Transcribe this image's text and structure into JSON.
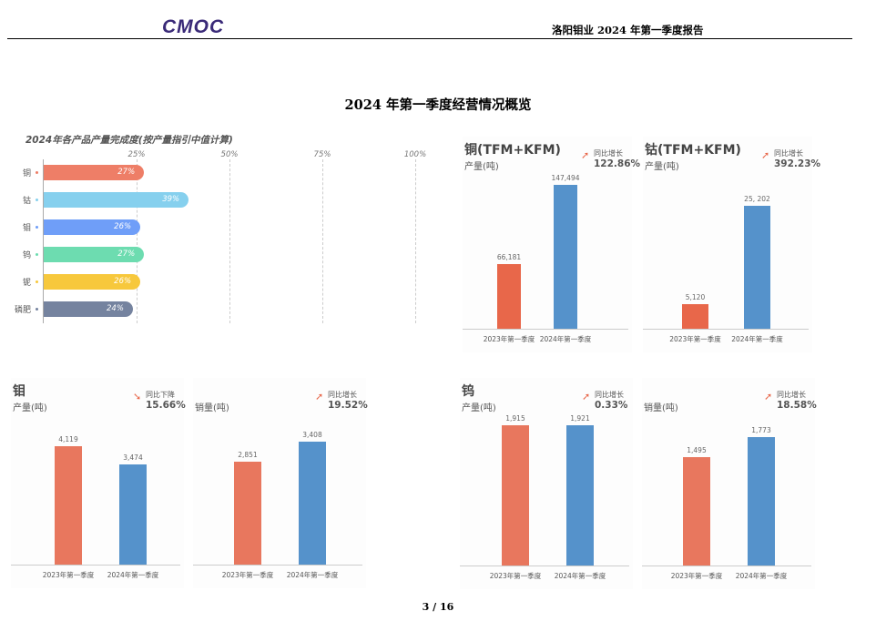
{
  "header": {
    "logo_text": "CMOC",
    "doc_title": "洛阳钼业 2024 年第一季度报告"
  },
  "page_title": "2024 年第一季度经营情况概览",
  "footer": {
    "page": "3 / 16"
  },
  "colors": {
    "y2023": "#e8775e",
    "y2024": "#5592cb",
    "cu2023": "#e8674a"
  },
  "chart_data": [
    {
      "type": "bar",
      "orientation": "horizontal",
      "title": "2024年各产品产量完成度(按产量指引中值计算)",
      "xlim": [
        0,
        100
      ],
      "ticks": [
        "25%",
        "50%",
        "75%",
        "100%"
      ],
      "grid": true,
      "categories": [
        "铜",
        "钴",
        "钼",
        "钨",
        "铌",
        "磷肥"
      ],
      "values": [
        27,
        39,
        26,
        27,
        26,
        24
      ],
      "labels": [
        "27%",
        "39%",
        "26%",
        "27%",
        "26%",
        "24%"
      ],
      "colors": [
        "#ee7e67",
        "#86d0ee",
        "#6f9ef8",
        "#6ddcb0",
        "#f7c83c",
        "#75839f"
      ]
    },
    {
      "type": "bar",
      "title": "铜(TFM+KFM)",
      "subtitle": "产量(吨)",
      "yoy_label": "同比增长",
      "yoy_value": "122.86%",
      "yoy_dir": "up",
      "categories": [
        "2023年第一季度",
        "2024年第一季度"
      ],
      "values": [
        66181,
        147494
      ],
      "labels": [
        "66,181",
        "147,494"
      ]
    },
    {
      "type": "bar",
      "title": "钴(TFM+KFM)",
      "subtitle": "产量(吨)",
      "yoy_label": "同比增长",
      "yoy_value": "392.23%",
      "yoy_dir": "up",
      "categories": [
        "2023年第一季度",
        "2024年第一季度"
      ],
      "values": [
        5120,
        25202
      ],
      "labels": [
        "5,120",
        "25, 202"
      ]
    },
    {
      "type": "bar",
      "title": "钼",
      "subtitle": "产量(吨)",
      "yoy_label": "同比下降",
      "yoy_value": "15.66%",
      "yoy_dir": "down",
      "categories": [
        "2023年第一季度",
        "2024年第一季度"
      ],
      "values": [
        4119,
        3474
      ],
      "labels": [
        "4,119",
        "3,474"
      ]
    },
    {
      "type": "bar",
      "title": "",
      "subtitle": "销量(吨)",
      "yoy_label": "同比增长",
      "yoy_value": "19.52%",
      "yoy_dir": "up",
      "categories": [
        "2023年第一季度",
        "2024年第一季度"
      ],
      "values": [
        2851,
        3408
      ],
      "labels": [
        "2,851",
        "3,408"
      ]
    },
    {
      "type": "bar",
      "title": "钨",
      "subtitle": "产量(吨)",
      "yoy_label": "同比增长",
      "yoy_value": "0.33%",
      "yoy_dir": "up",
      "categories": [
        "2023年第一季度",
        "2024年第一季度"
      ],
      "values": [
        1915,
        1921
      ],
      "labels": [
        "1,915",
        "1,921"
      ]
    },
    {
      "type": "bar",
      "title": "",
      "subtitle": "销量(吨)",
      "yoy_label": "同比增长",
      "yoy_value": "18.58%",
      "yoy_dir": "up",
      "categories": [
        "2023年第一季度",
        "2024年第一季度"
      ],
      "values": [
        1495,
        1773
      ],
      "labels": [
        "1,495",
        "1,773"
      ]
    }
  ]
}
